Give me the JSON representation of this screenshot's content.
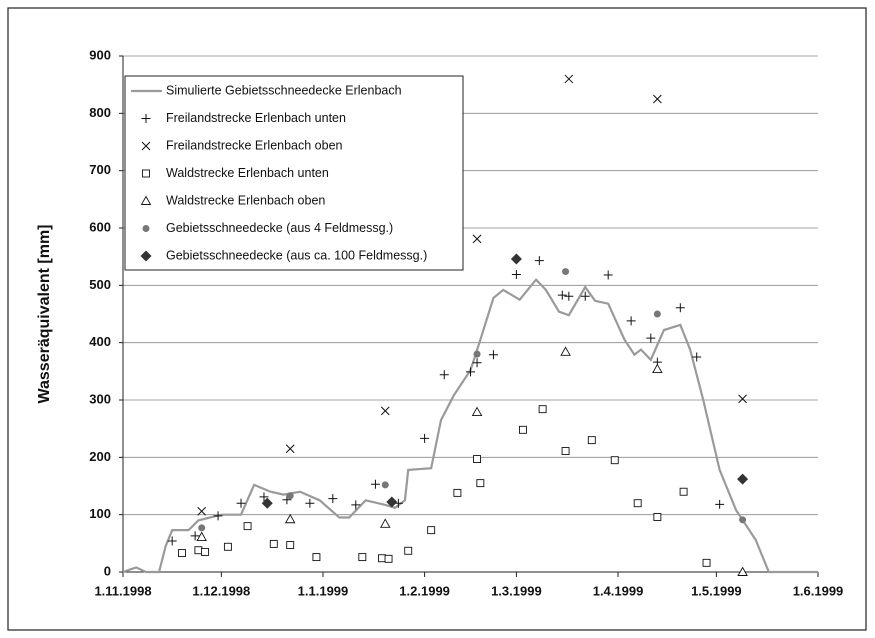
{
  "chart_data": {
    "type": "scatter",
    "y_label": "Wasseräquivalent [mm]",
    "xlim": [
      "1998-11-01",
      "1999-06-01"
    ],
    "xticks": [
      {
        "value": "1998-11-01",
        "label": "1.11.1998"
      },
      {
        "value": "1998-12-01",
        "label": "1.12.1998"
      },
      {
        "value": "1999-01-01",
        "label": "1.1.1999"
      },
      {
        "value": "1999-02-01",
        "label": "1.2.1999"
      },
      {
        "value": "1999-03-01",
        "label": "1.3.1999"
      },
      {
        "value": "1999-04-01",
        "label": "1.4.1999"
      },
      {
        "value": "1999-05-01",
        "label": "1.5.1999"
      },
      {
        "value": "1999-06-01",
        "label": "1.6.1999"
      }
    ],
    "ylim": [
      0,
      900
    ],
    "yticks": [
      0,
      100,
      200,
      300,
      400,
      500,
      600,
      700,
      800,
      900
    ],
    "grid": true,
    "series": [
      {
        "name": "Simulierte Gebietsschneedecke Erlenbach",
        "marker": "line",
        "color": "#9a9a9a",
        "x": [
          "1998-11-01",
          "1998-11-05",
          "1998-11-08",
          "1998-11-12",
          "1998-11-14",
          "1998-11-16",
          "1998-11-21",
          "1998-11-24",
          "1998-12-01",
          "1998-12-07",
          "1998-12-11",
          "1998-12-16",
          "1998-12-20",
          "1998-12-25",
          "1998-12-31",
          "1999-01-06",
          "1999-01-09",
          "1999-01-14",
          "1999-01-20",
          "1999-01-23",
          "1999-01-26",
          "1999-01-27",
          "1999-02-03",
          "1999-02-06",
          "1999-02-10",
          "1999-02-15",
          "1999-02-18",
          "1999-02-22",
          "1999-02-25",
          "1999-03-02",
          "1999-03-07",
          "1999-03-10",
          "1999-03-14",
          "1999-03-17",
          "1999-03-22",
          "1999-03-25",
          "1999-03-29",
          "1999-04-03",
          "1999-04-06",
          "1999-04-08",
          "1999-04-11",
          "1999-04-15",
          "1999-04-20",
          "1999-04-23",
          "1999-04-27",
          "1999-05-02",
          "1999-05-07",
          "1999-05-13",
          "1999-05-17",
          "1999-06-01"
        ],
        "values": [
          0,
          8,
          0,
          0,
          45,
          73,
          73,
          90,
          100,
          100,
          152,
          140,
          135,
          140,
          125,
          95,
          95,
          125,
          117,
          112,
          125,
          178,
          181,
          265,
          309,
          352,
          405,
          478,
          492,
          475,
          510,
          492,
          454,
          448,
          497,
          473,
          468,
          405,
          379,
          388,
          370,
          422,
          431,
          388,
          300,
          178,
          108,
          56,
          0,
          0
        ]
      },
      {
        "name": "Freilandstrecke Erlenbach unten",
        "marker": "plus",
        "color": "#111111",
        "x": [
          "1998-11-16",
          "1998-11-23",
          "1998-11-30",
          "1998-12-07",
          "1998-12-14",
          "1998-12-21",
          "1998-12-28",
          "1999-01-04",
          "1999-01-11",
          "1999-01-17",
          "1999-01-24",
          "1999-02-01",
          "1999-02-07",
          "1999-02-15",
          "1999-02-17",
          "1999-02-22",
          "1999-03-01",
          "1999-03-08",
          "1999-03-15",
          "1999-03-17",
          "1999-03-22",
          "1999-03-29",
          "1999-04-05",
          "1999-04-11",
          "1999-04-13",
          "1999-04-20",
          "1999-04-25",
          "1999-05-02"
        ],
        "values": [
          54,
          63,
          98,
          120,
          131,
          126,
          120,
          128,
          117,
          153,
          120,
          233,
          344,
          349,
          365,
          379,
          519,
          543,
          483,
          481,
          481,
          518,
          438,
          408,
          366,
          461,
          375,
          118
        ]
      },
      {
        "name": "Freilandstrecke Erlenbach oben",
        "marker": "cross",
        "color": "#111111",
        "x": [
          "1998-11-25",
          "1998-12-22",
          "1999-01-20",
          "1999-02-17",
          "1999-03-17",
          "1999-04-13",
          "1999-05-09"
        ],
        "values": [
          106,
          215,
          281,
          581,
          860,
          825,
          302
        ]
      },
      {
        "name": "Waldstrecke Erlenbach unten",
        "marker": "square",
        "color": "#111111",
        "x": [
          "1998-11-19",
          "1998-11-24",
          "1998-11-26",
          "1998-12-03",
          "1998-12-09",
          "1998-12-17",
          "1998-12-22",
          "1998-12-30",
          "1999-01-13",
          "1999-01-19",
          "1999-01-21",
          "1999-01-27",
          "1999-02-03",
          "1999-02-11",
          "1999-02-17",
          "1999-02-18",
          "1999-03-03",
          "1999-03-09",
          "1999-03-16",
          "1999-03-24",
          "1999-03-31",
          "1999-04-07",
          "1999-04-13",
          "1999-04-21",
          "1999-04-28"
        ],
        "values": [
          33,
          38,
          35,
          44,
          80,
          49,
          47,
          26,
          26,
          24,
          23,
          37,
          73,
          138,
          197,
          155,
          248,
          284,
          211,
          230,
          195,
          120,
          96,
          140,
          16
        ]
      },
      {
        "name": "Waldstrecke Erlenbach oben",
        "marker": "triangle",
        "color": "#111111",
        "x": [
          "1998-11-25",
          "1998-12-22",
          "1999-01-20",
          "1999-02-17",
          "1999-03-16",
          "1999-04-13",
          "1999-05-09"
        ],
        "values": [
          61,
          92,
          84,
          279,
          384,
          354,
          0
        ]
      },
      {
        "name": "Gebietsschneedecke (aus 4 Feldmessg.)",
        "marker": "circle",
        "color": "#777777",
        "x": [
          "1998-11-25",
          "1998-12-22",
          "1999-01-20",
          "1999-02-17",
          "1999-03-16",
          "1999-04-13",
          "1999-05-09"
        ],
        "values": [
          77,
          133,
          152,
          380,
          524,
          450,
          91
        ]
      },
      {
        "name": "Gebietsschneedecke (aus ca. 100 Feldmessg.)",
        "marker": "diamond",
        "color": "#333333",
        "x": [
          "1998-12-15",
          "1999-01-22",
          "1999-03-01",
          "1999-05-09"
        ],
        "values": [
          120,
          122,
          546,
          162
        ]
      }
    ]
  }
}
